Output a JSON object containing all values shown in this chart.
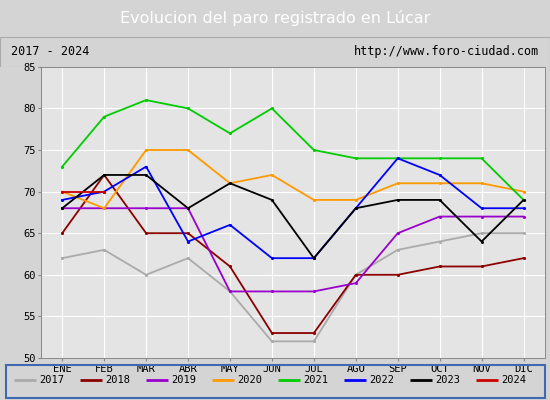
{
  "title": "Evolucion del paro registrado en Lúcar",
  "subtitle_left": "2017 - 2024",
  "subtitle_right": "http://www.foro-ciudad.com",
  "months": [
    "ENE",
    "FEB",
    "MAR",
    "ABR",
    "MAY",
    "JUN",
    "JUL",
    "AGO",
    "SEP",
    "OCT",
    "NOV",
    "DIC"
  ],
  "ylim": [
    50,
    85
  ],
  "yticks": [
    50,
    55,
    60,
    65,
    70,
    75,
    80,
    85
  ],
  "series": {
    "2017": {
      "color": "#aaaaaa",
      "values": [
        62,
        63,
        60,
        62,
        58,
        52,
        52,
        60,
        63,
        64,
        65,
        65
      ]
    },
    "2018": {
      "color": "#8b0000",
      "values": [
        65,
        72,
        65,
        65,
        61,
        53,
        53,
        60,
        60,
        61,
        61,
        62
      ]
    },
    "2019": {
      "color": "#9900cc",
      "values": [
        68,
        68,
        68,
        68,
        58,
        58,
        58,
        59,
        65,
        67,
        67,
        67
      ]
    },
    "2020": {
      "color": "#ff9900",
      "values": [
        70,
        68,
        75,
        75,
        71,
        72,
        69,
        69,
        71,
        71,
        71,
        70
      ]
    },
    "2021": {
      "color": "#00cc00",
      "values": [
        73,
        79,
        81,
        80,
        77,
        80,
        75,
        74,
        74,
        74,
        74,
        69
      ]
    },
    "2022": {
      "color": "#0000ff",
      "values": [
        69,
        70,
        73,
        64,
        66,
        62,
        62,
        68,
        74,
        72,
        68,
        68
      ]
    },
    "2023": {
      "color": "#000000",
      "values": [
        68,
        72,
        72,
        68,
        71,
        69,
        62,
        68,
        69,
        69,
        64,
        69
      ]
    },
    "2024": {
      "color": "#cc0000",
      "values": [
        70,
        70,
        null,
        null,
        null,
        null,
        null,
        null,
        null,
        null,
        null,
        null
      ]
    }
  },
  "bg_color": "#d4d4d4",
  "plot_bg_color": "#e4e4e4",
  "title_bg_color": "#4169b0",
  "title_color": "white",
  "header_bg_color": "#ffffff",
  "grid_color": "#ffffff",
  "legend_border_color": "#4169b0"
}
